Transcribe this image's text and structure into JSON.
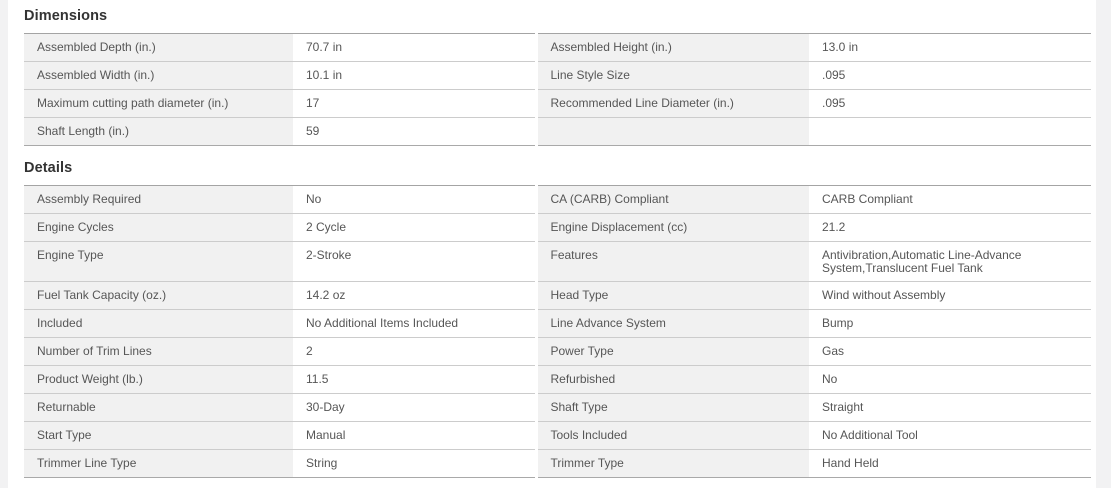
{
  "page": {
    "background_color": "#f2f2f3",
    "card_color": "#ffffff",
    "label_cell_color": "#f1f1f1",
    "text_color": "#565656",
    "title_color": "#333333"
  },
  "sections": [
    {
      "title": "Dimensions",
      "rows": [
        {
          "l_label": "Assembled Depth (in.)",
          "l_value": "70.7 in",
          "r_label": "Assembled Height (in.)",
          "r_value": "13.0 in",
          "tall": false
        },
        {
          "l_label": "Assembled Width (in.)",
          "l_value": "10.1 in",
          "r_label": "Line Style Size",
          "r_value": ".095",
          "tall": false
        },
        {
          "l_label": "Maximum cutting path diameter (in.)",
          "l_value": "17",
          "r_label": "Recommended Line Diameter (in.)",
          "r_value": ".095",
          "tall": false
        },
        {
          "l_label": "Shaft Length (in.)",
          "l_value": "59",
          "r_label": "",
          "r_value": "",
          "tall": false
        }
      ]
    },
    {
      "title": "Details",
      "rows": [
        {
          "l_label": "Assembly Required",
          "l_value": "No",
          "r_label": "CA (CARB) Compliant",
          "r_value": "CARB Compliant",
          "tall": false
        },
        {
          "l_label": "Engine Cycles",
          "l_value": "2 Cycle",
          "r_label": "Engine Displacement (cc)",
          "r_value": "21.2",
          "tall": false
        },
        {
          "l_label": "Engine Type",
          "l_value": "2-Stroke",
          "r_label": "Features",
          "r_value": "Antivibration,Automatic Line-Advance System,Translucent Fuel Tank",
          "tall": true
        },
        {
          "l_label": "Fuel Tank Capacity (oz.)",
          "l_value": "14.2 oz",
          "r_label": "Head Type",
          "r_value": "Wind without Assembly",
          "tall": false
        },
        {
          "l_label": "Included",
          "l_value": "No Additional Items Included",
          "r_label": "Line Advance System",
          "r_value": "Bump",
          "tall": false
        },
        {
          "l_label": "Number of Trim Lines",
          "l_value": "2",
          "r_label": "Power Type",
          "r_value": "Gas",
          "tall": false
        },
        {
          "l_label": "Product Weight (lb.)",
          "l_value": "11.5",
          "r_label": "Refurbished",
          "r_value": "No",
          "tall": false
        },
        {
          "l_label": "Returnable",
          "l_value": "30-Day",
          "r_label": "Shaft Type",
          "r_value": "Straight",
          "tall": false
        },
        {
          "l_label": "Start Type",
          "l_value": "Manual",
          "r_label": "Tools Included",
          "r_value": "No Additional Tool",
          "tall": false
        },
        {
          "l_label": "Trimmer Line Type",
          "l_value": "String",
          "r_label": "Trimmer Type",
          "r_value": "Hand Held",
          "tall": false
        }
      ]
    }
  ]
}
